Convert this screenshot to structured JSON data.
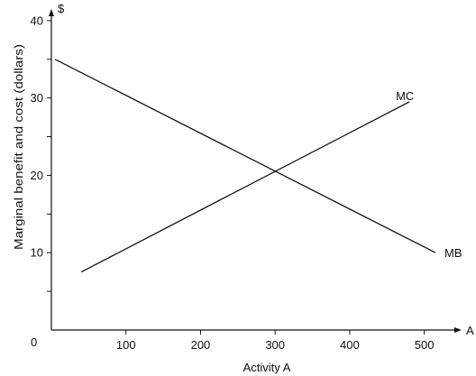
{
  "chart_data": {
    "type": "line",
    "title": "",
    "xlabel": "Activity A",
    "ylabel": "Marginal benefit and cost (dollars)",
    "x_axis_symbol": "A",
    "y_axis_symbol": "$",
    "origin_label": "0",
    "xlim": [
      0,
      550
    ],
    "ylim": [
      0,
      41.5
    ],
    "x_ticks": [
      {
        "value": 100,
        "label": "100"
      },
      {
        "value": 200,
        "label": "200"
      },
      {
        "value": 300,
        "label": "300"
      },
      {
        "value": 400,
        "label": "400"
      },
      {
        "value": 500,
        "label": "500"
      }
    ],
    "y_ticks": [
      {
        "value": 5,
        "label": ""
      },
      {
        "value": 10,
        "label": "10"
      },
      {
        "value": 15,
        "label": ""
      },
      {
        "value": 20,
        "label": "20"
      },
      {
        "value": 25,
        "label": ""
      },
      {
        "value": 30,
        "label": "30"
      },
      {
        "value": 35,
        "label": ""
      },
      {
        "value": 40,
        "label": "40"
      }
    ],
    "grid": false,
    "legend": "none",
    "series": [
      {
        "name": "MC",
        "x": [
          40,
          480
        ],
        "y": [
          7.5,
          29.5
        ],
        "color": "#111111"
      },
      {
        "name": "MB",
        "x": [
          5,
          515
        ],
        "y": [
          35,
          10
        ],
        "color": "#111111"
      }
    ]
  }
}
